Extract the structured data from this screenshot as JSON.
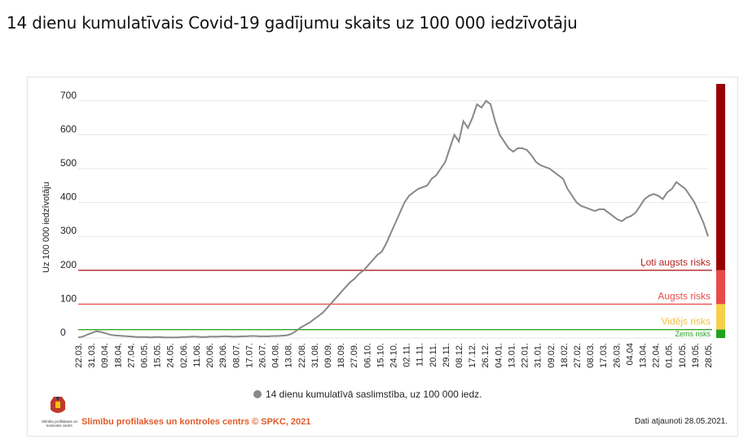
{
  "page_title": "14 dienu kumulatīvais Covid-19 gadījumu skaits uz 100 000 iedzīvotāju",
  "chart_data": {
    "type": "line",
    "ylabel": "Uz 100 000 iedzīvotāju",
    "ylim": [
      0,
      750
    ],
    "yticks": [
      0,
      100,
      200,
      300,
      400,
      500,
      600,
      700
    ],
    "grid": true,
    "legend_position": "bottom",
    "x_tick_labels": [
      "22.03.",
      "31.03.",
      "09.04.",
      "18.04.",
      "27.04.",
      "06.05.",
      "15.05.",
      "24.05.",
      "02.06.",
      "11.06.",
      "20.06.",
      "29.06.",
      "08.07.",
      "17.07.",
      "26.07.",
      "04.08.",
      "13.08.",
      "22.08.",
      "31.08.",
      "09.09.",
      "18.09.",
      "27.09.",
      "06.10.",
      "15.10.",
      "24.10.",
      "02.11.",
      "11.11.",
      "20.11.",
      "29.11.",
      "08.12.",
      "17.12.",
      "26.12.",
      "04.01.",
      "13.01.",
      "22.01.",
      "31.01.",
      "09.02.",
      "18.02.",
      "27.02.",
      "08.03.",
      "17.03.",
      "26.03.",
      "04.04",
      "13.04.",
      "22.04.",
      "01.05.",
      "10.05.",
      "19.05.",
      "28.05."
    ],
    "series": [
      {
        "name": "14 dienu kumulatīvā saslimstība, uz 100 000 iedz.",
        "color": "#888888",
        "values": [
          2,
          4,
          10,
          15,
          20,
          18,
          14,
          10,
          8,
          7,
          6,
          5,
          4,
          3,
          3,
          3,
          2,
          3,
          3,
          2,
          2,
          2,
          2,
          3,
          3,
          4,
          4,
          3,
          3,
          4,
          4,
          4,
          5,
          5,
          4,
          4,
          5,
          5,
          6,
          6,
          5,
          5,
          5,
          6,
          6,
          7,
          8,
          12,
          20,
          30,
          38,
          45,
          55,
          65,
          75,
          90,
          105,
          120,
          135,
          150,
          165,
          175,
          190,
          200,
          215,
          230,
          245,
          255,
          280,
          310,
          340,
          370,
          400,
          420,
          430,
          440,
          445,
          450,
          470,
          480,
          500,
          520,
          560,
          600,
          580,
          640,
          620,
          650,
          690,
          680,
          700,
          690,
          640,
          600,
          580,
          560,
          550,
          560,
          560,
          555,
          540,
          520,
          510,
          505,
          500,
          490,
          480,
          470,
          440,
          420,
          400,
          390,
          385,
          380,
          375,
          380,
          380,
          370,
          360,
          350,
          345,
          355,
          360,
          370,
          390,
          410,
          420,
          425,
          420,
          410,
          430,
          440,
          460,
          450,
          440,
          420,
          400,
          370,
          340,
          300
        ]
      }
    ],
    "risk_thresholds": [
      {
        "label": "Ļoti augsts risks",
        "value": 200,
        "color": "#b22222",
        "band_color": "#990000"
      },
      {
        "label": "Augsts risks",
        "value": 100,
        "color": "#e84a4a",
        "band_color": "#e84a4a"
      },
      {
        "label": "Vidējs risks",
        "value": 25,
        "color": "#f0c040",
        "band_color": "#f7d04a"
      },
      {
        "label": "Zems risks",
        "value": 0,
        "color": "#2aa02a",
        "band_color": "#1fa31f"
      }
    ]
  },
  "footer": {
    "org_name": "Slimību profilakses un kontroles centrs © SPKC, 2021",
    "updated": "Dati atjaunoti 28.05.2021.",
    "logo_text": "Slimību profilakses un kontroles centrs"
  }
}
